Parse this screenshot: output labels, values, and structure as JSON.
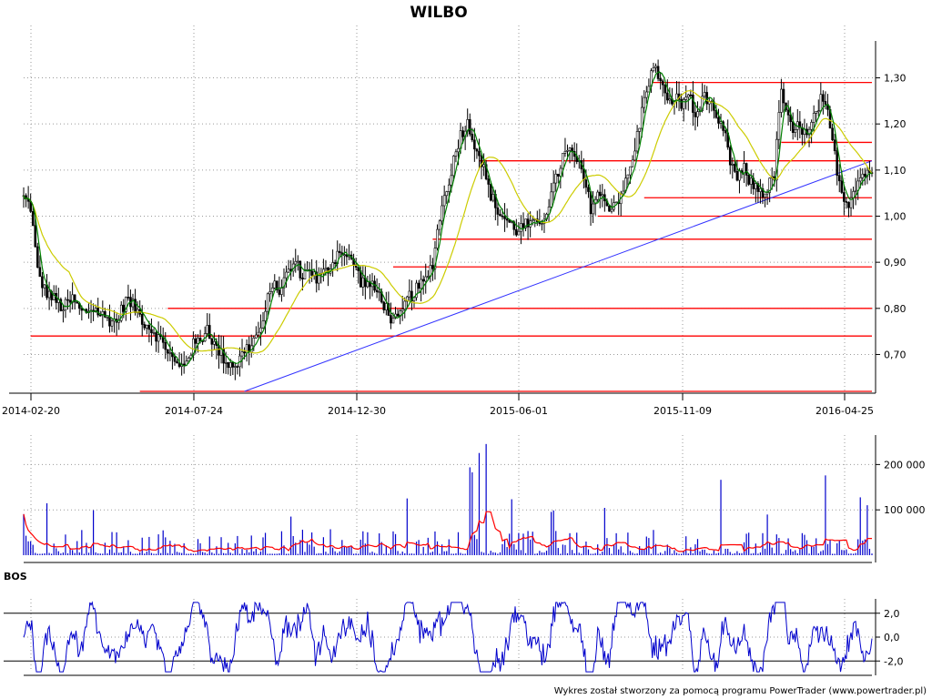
{
  "chart_data": [
    {
      "type": "candlestick",
      "title": "WILBO",
      "x_tick_labels": [
        "2014-02-20",
        "2014-07-24",
        "2014-12-30",
        "2015-06-01",
        "2015-11-09",
        "2016-04-25"
      ],
      "y_tick_labels": [
        "0,70",
        "0,80",
        "0,90",
        "1,00",
        "1,10",
        "1,20",
        "1,30"
      ],
      "y_ticks": [
        0.7,
        0.8,
        0.9,
        1.0,
        1.1,
        1.2,
        1.3
      ],
      "ylim": [
        0.62,
        1.38
      ],
      "grid": true,
      "colors": {
        "candles": "#008000",
        "wicks": "#000000",
        "moving_average_fast": "#008000",
        "moving_average_slow": "#cccc00",
        "levels": "#ff0000",
        "trendline": "#3333ff"
      },
      "price_path": [
        [
          0,
          1.04
        ],
        [
          6,
          1.02
        ],
        [
          12,
          0.88
        ],
        [
          18,
          0.84
        ],
        [
          26,
          0.82
        ],
        [
          34,
          0.8
        ],
        [
          42,
          0.82
        ],
        [
          50,
          0.79
        ],
        [
          60,
          0.8
        ],
        [
          70,
          0.78
        ],
        [
          80,
          0.77
        ],
        [
          88,
          0.82
        ],
        [
          96,
          0.8
        ],
        [
          104,
          0.77
        ],
        [
          112,
          0.75
        ],
        [
          118,
          0.73
        ],
        [
          124,
          0.71
        ],
        [
          130,
          0.68
        ],
        [
          135,
          0.67
        ],
        [
          140,
          0.69
        ],
        [
          146,
          0.72
        ],
        [
          152,
          0.73
        ],
        [
          158,
          0.76
        ],
        [
          164,
          0.72
        ],
        [
          170,
          0.7
        ],
        [
          176,
          0.68
        ],
        [
          184,
          0.68
        ],
        [
          190,
          0.71
        ],
        [
          196,
          0.72
        ],
        [
          202,
          0.75
        ],
        [
          206,
          0.76
        ],
        [
          212,
          0.85
        ],
        [
          220,
          0.84
        ],
        [
          228,
          0.88
        ],
        [
          234,
          0.9
        ],
        [
          240,
          0.87
        ],
        [
          246,
          0.89
        ],
        [
          252,
          0.86
        ],
        [
          260,
          0.88
        ],
        [
          266,
          0.9
        ],
        [
          272,
          0.93
        ],
        [
          278,
          0.91
        ],
        [
          284,
          0.9
        ],
        [
          290,
          0.86
        ],
        [
          298,
          0.85
        ],
        [
          306,
          0.83
        ],
        [
          312,
          0.8
        ],
        [
          318,
          0.77
        ],
        [
          324,
          0.78
        ],
        [
          330,
          0.82
        ],
        [
          338,
          0.84
        ],
        [
          346,
          0.86
        ],
        [
          352,
          0.9
        ],
        [
          358,
          1.0
        ],
        [
          364,
          1.06
        ],
        [
          370,
          1.12
        ],
        [
          376,
          1.18
        ],
        [
          382,
          1.2
        ],
        [
          388,
          1.16
        ],
        [
          394,
          1.12
        ],
        [
          400,
          1.06
        ],
        [
          408,
          1.01
        ],
        [
          416,
          0.99
        ],
        [
          424,
          0.97
        ],
        [
          432,
          0.98
        ],
        [
          440,
          0.98
        ],
        [
          448,
          1.0
        ],
        [
          456,
          1.06
        ],
        [
          464,
          1.13
        ],
        [
          470,
          1.14
        ],
        [
          476,
          1.12
        ],
        [
          482,
          1.08
        ],
        [
          488,
          1.02
        ],
        [
          494,
          1.05
        ],
        [
          500,
          1.03
        ],
        [
          506,
          1.02
        ],
        [
          512,
          1.04
        ],
        [
          518,
          1.07
        ],
        [
          524,
          1.12
        ],
        [
          530,
          1.2
        ],
        [
          536,
          1.28
        ],
        [
          542,
          1.32
        ],
        [
          548,
          1.3
        ],
        [
          554,
          1.24
        ],
        [
          560,
          1.26
        ],
        [
          566,
          1.24
        ],
        [
          572,
          1.27
        ],
        [
          578,
          1.21
        ],
        [
          584,
          1.26
        ],
        [
          590,
          1.25
        ],
        [
          596,
          1.2
        ],
        [
          602,
          1.19
        ],
        [
          608,
          1.12
        ],
        [
          614,
          1.08
        ],
        [
          620,
          1.1
        ],
        [
          626,
          1.07
        ],
        [
          632,
          1.06
        ],
        [
          638,
          1.05
        ],
        [
          646,
          1.09
        ],
        [
          652,
          1.28
        ],
        [
          656,
          1.22
        ],
        [
          662,
          1.18
        ],
        [
          668,
          1.2
        ],
        [
          674,
          1.17
        ],
        [
          680,
          1.21
        ],
        [
          686,
          1.25
        ],
        [
          692,
          1.22
        ],
        [
          698,
          1.13
        ],
        [
          704,
          1.05
        ],
        [
          710,
          1.03
        ],
        [
          716,
          1.07
        ],
        [
          722,
          1.09
        ],
        [
          728,
          1.1
        ]
      ],
      "horizontal_levels": [
        {
          "y": 1.29,
          "x_from": 540,
          "x_to": 730
        },
        {
          "y": 1.16,
          "x_from": 652,
          "x_to": 730
        },
        {
          "y": 1.12,
          "x_from": 392,
          "x_to": 730
        },
        {
          "y": 1.04,
          "x_from": 534,
          "x_to": 730
        },
        {
          "y": 1.0,
          "x_from": 494,
          "x_to": 730
        },
        {
          "y": 0.95,
          "x_from": 352,
          "x_to": 730
        },
        {
          "y": 0.89,
          "x_from": 318,
          "x_to": 730
        },
        {
          "y": 0.8,
          "x_from": 124,
          "x_to": 730
        },
        {
          "y": 0.74,
          "x_from": 6,
          "x_to": 730
        },
        {
          "y": 0.62,
          "x_from": 100,
          "x_to": 730
        }
      ],
      "trendline": {
        "from": [
          190,
          0.62
        ],
        "to": [
          730,
          1.12
        ]
      }
    },
    {
      "type": "bar",
      "y_tick_labels": [
        "100 000",
        "200 000"
      ],
      "y_ticks": [
        100000,
        200000
      ],
      "ylim": [
        0,
        265000
      ],
      "grid": true,
      "colors": {
        "bars": "#0000cc",
        "average": "#ff0000"
      }
    },
    {
      "type": "line",
      "panel_label": "BOS",
      "y_tick_labels": [
        "2,0",
        "0,0",
        "-2,0"
      ],
      "y_ticks": [
        2.0,
        0.0,
        -2.0
      ],
      "ylim": [
        -3.2,
        3.2
      ],
      "reference_lines": [
        2.0,
        -2.0
      ],
      "grid": true,
      "colors": {
        "line": "#0000cc",
        "reference": "#000000"
      }
    }
  ],
  "footer": {
    "credit": "Wykres został stworzony za pomocą programu PowerTrader (www.powertrader.pl)"
  }
}
